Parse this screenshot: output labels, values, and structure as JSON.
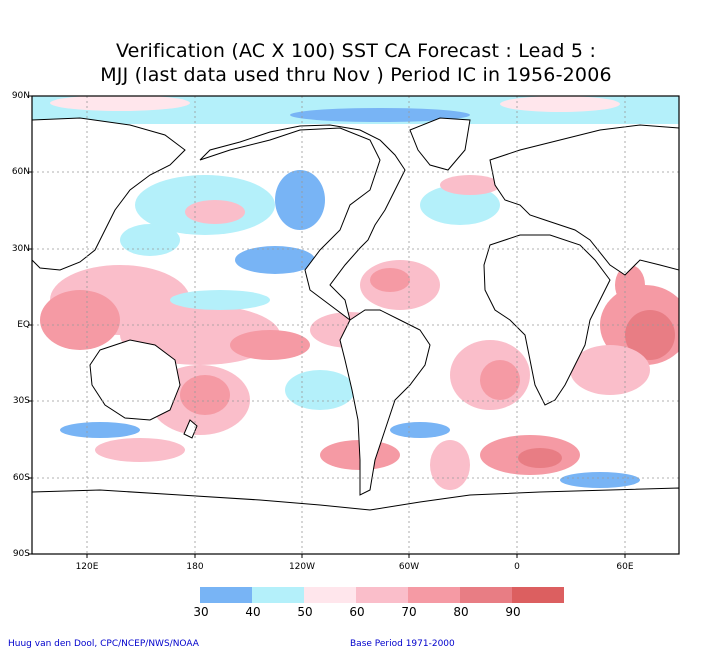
{
  "header": {
    "title_line1": "Verification (AC X 100) SST CA Forecast : Lead 5 :",
    "title_line2": "MJJ (last data used thru Nov ) Period IC in 1956-2006"
  },
  "axes": {
    "lat_ticks": [
      "90N",
      "60N",
      "30N",
      "EQ",
      "30S",
      "60S",
      "90S"
    ],
    "lon_ticks": [
      "120E",
      "180",
      "120W",
      "60W",
      "0",
      "60E"
    ],
    "grid": true
  },
  "colorbar": {
    "colors": [
      "#78b4f5",
      "#b4f0fa",
      "#ffe6ec",
      "#fabeca",
      "#f59aa4",
      "#e87d84",
      "#dc5f60"
    ],
    "ticks": [
      "30",
      "40",
      "50",
      "60",
      "70",
      "80",
      "90"
    ]
  },
  "footer": {
    "credit_left": "Huug van den Dool, CPC/NCEP/NWS/NOAA",
    "credit_right": "Base Period 1971-2000"
  },
  "palette": {
    "ocean_background": "#ffffff",
    "land": "#ffffff",
    "coast": "#000000"
  }
}
